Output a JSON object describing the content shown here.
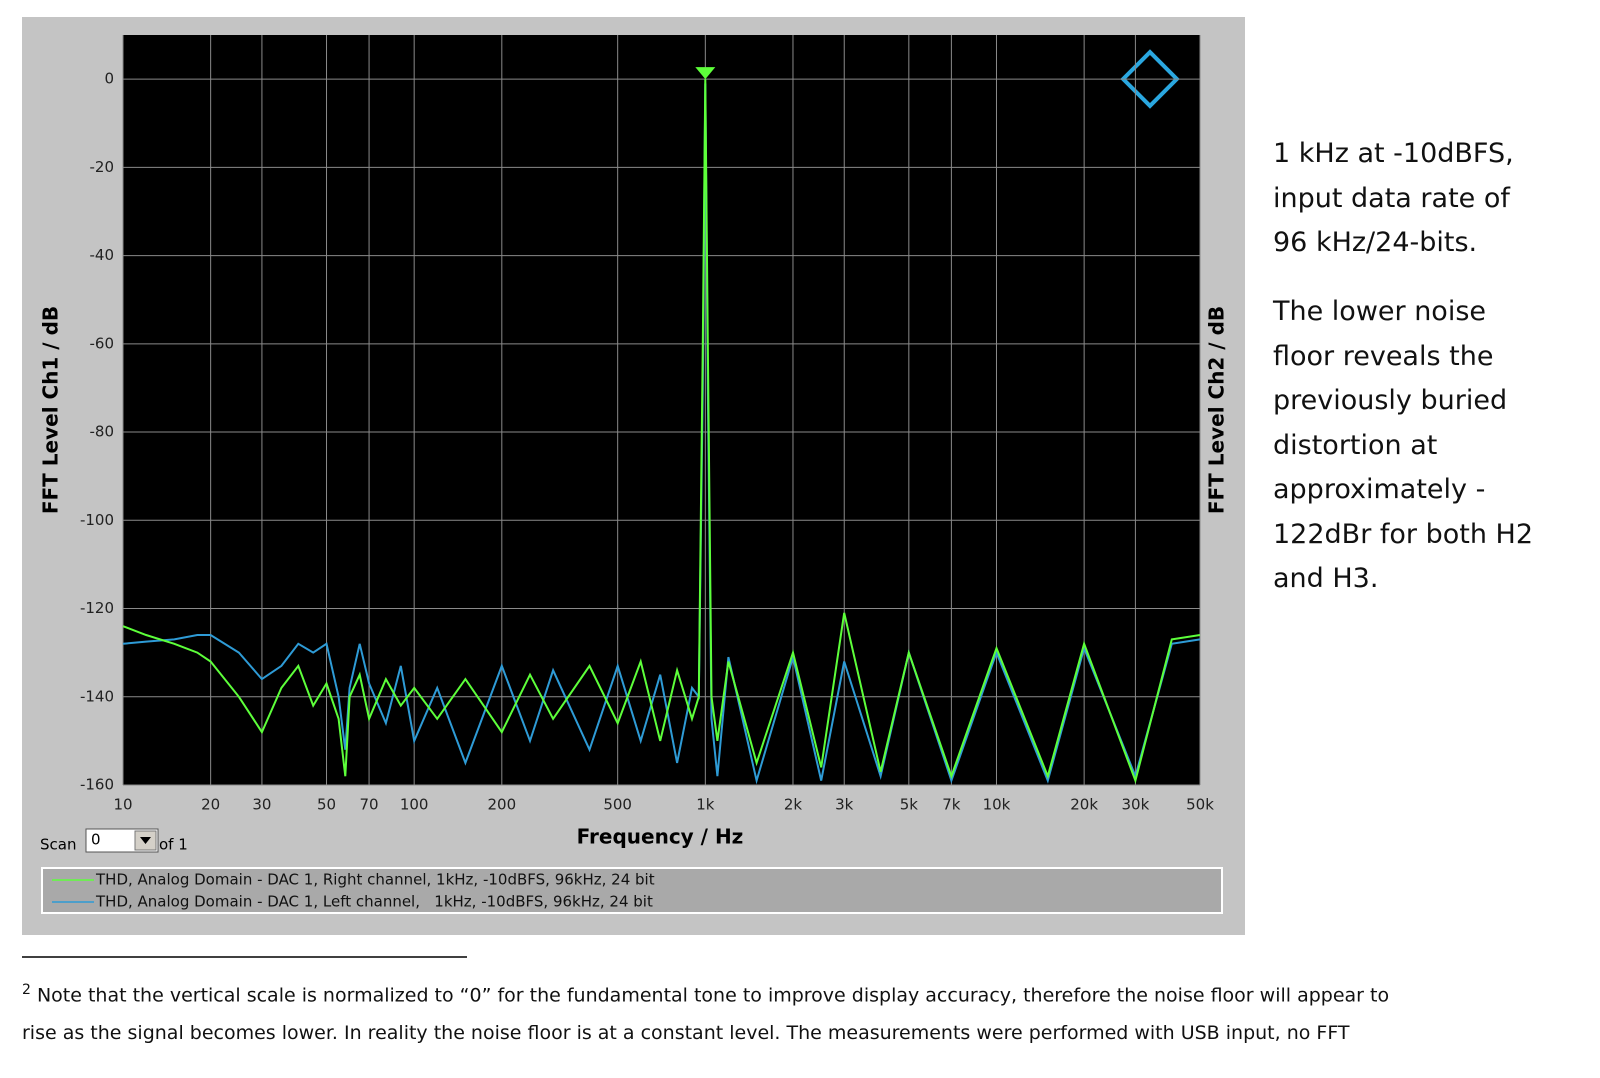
{
  "chart_data": {
    "type": "line",
    "y_label": "FFT Level Ch1 / dB",
    "y2_label": "FFT Level Ch2 / dB",
    "x_label": "Frequency / Hz",
    "xscale": "log",
    "grid": true,
    "xlim": [
      10,
      50000
    ],
    "ylim": [
      -160,
      10
    ],
    "xticks": [
      10,
      20,
      30,
      50,
      70,
      100,
      200,
      500,
      {
        "value": 1000,
        "label": "1k"
      },
      {
        "value": 2000,
        "label": "2k"
      },
      {
        "value": 3000,
        "label": "3k"
      },
      {
        "value": 5000,
        "label": "5k"
      },
      {
        "value": 7000,
        "label": "7k"
      },
      {
        "value": 10000,
        "label": "10k"
      },
      {
        "value": 20000,
        "label": "20k"
      },
      {
        "value": 30000,
        "label": "30k"
      },
      {
        "value": 50000,
        "label": "50k"
      }
    ],
    "yticks": [
      0,
      -20,
      -40,
      -60,
      -80,
      -100,
      -120,
      -140,
      -160
    ],
    "x": [
      10,
      12,
      15,
      18,
      20,
      25,
      30,
      35,
      40,
      45,
      50,
      55,
      58,
      60,
      65,
      70,
      80,
      90,
      100,
      120,
      150,
      200,
      250,
      300,
      400,
      500,
      600,
      700,
      800,
      900,
      950,
      980,
      1000,
      1020,
      1050,
      1100,
      1200,
      1500,
      2000,
      2500,
      3000,
      4000,
      5000,
      7000,
      10000,
      15000,
      20000,
      30000,
      40000,
      50000
    ],
    "series": [
      {
        "name": "THD, Analog Domain - DAC 1, Left channel,   1kHz, -10dBFS, 96kHz, 24 bit",
        "color": "#2e9bd6",
        "values": [
          -128,
          -127.5,
          -127,
          -126,
          -126,
          -130,
          -136,
          -133,
          -128,
          -130,
          -128,
          -140,
          -152,
          -138,
          -128,
          -137,
          -146,
          -133,
          -150,
          -138,
          -155,
          -133,
          -150,
          -134,
          -152,
          -133,
          -150,
          -135,
          -155,
          -138,
          -140,
          -70,
          -1,
          -70,
          -145,
          -158,
          -131,
          -159,
          -131,
          -159,
          -132,
          -158,
          -130,
          -159,
          -130,
          -159,
          -129,
          -158,
          -128,
          -127
        ]
      },
      {
        "name": "THD, Analog Domain - DAC 1, Right channel, 1kHz, -10dBFS, 96kHz, 24 bit",
        "color": "#5dff3a",
        "values": [
          -124,
          -126,
          -128,
          -130,
          -132,
          -140,
          -148,
          -138,
          -133,
          -142,
          -137,
          -145,
          -158,
          -140,
          -135,
          -145,
          -136,
          -142,
          -138,
          -145,
          -136,
          -148,
          -135,
          -145,
          -133,
          -146,
          -132,
          -150,
          -134,
          -145,
          -140,
          -60,
          0,
          -60,
          -140,
          -150,
          -132,
          -155,
          -130,
          -156,
          -121,
          -157,
          -130,
          -158,
          -129,
          -158,
          -128,
          -159,
          -127,
          -126
        ]
      }
    ],
    "scan": {
      "label": "Scan",
      "value": "0",
      "suffix": "of 1"
    }
  },
  "side_text": {
    "paragraphs": [
      [
        "1 kHz at -10dBFS,",
        "input data rate of",
        "96 kHz/24-bits."
      ],
      [
        "The lower noise",
        "floor reveals the",
        "previously buried",
        "distortion at",
        "approximately -",
        "122dBr for both H2",
        "and H3."
      ]
    ]
  },
  "footnote": {
    "number": "2",
    "lines": [
      "Note that the vertical scale is normalized to “0” for the fundamental tone to improve display accuracy, therefore the noise floor will appear to",
      "rise as the signal becomes lower. In reality the noise floor is at a constant level. The measurements were performed with USB input, no FFT"
    ]
  }
}
